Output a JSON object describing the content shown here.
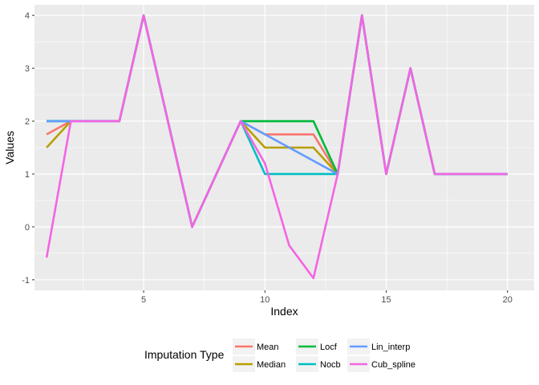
{
  "chart_data": {
    "type": "line",
    "title": "",
    "xlabel": "Index",
    "ylabel": "Values",
    "xlim": [
      0.5,
      21.1
    ],
    "ylim": [
      -1.2,
      4.2
    ],
    "x_ticks": [
      5,
      10,
      15,
      20
    ],
    "y_ticks": [
      -1,
      0,
      1,
      2,
      3,
      4
    ],
    "grid": true,
    "legend": {
      "title": "Imputation Type",
      "placement": "bottom"
    },
    "x": [
      1,
      2,
      3,
      4,
      5,
      6,
      7,
      8,
      9,
      10,
      11,
      12,
      13,
      14,
      15,
      16,
      17,
      18,
      19,
      20
    ],
    "series": [
      {
        "name": "Mean",
        "color": "#F8766D",
        "values": [
          1.75,
          2,
          2,
          2,
          4,
          2,
          0,
          1,
          2,
          1.75,
          1.75,
          1.75,
          1,
          4,
          1,
          3,
          1,
          1,
          1,
          1
        ]
      },
      {
        "name": "Median",
        "color": "#B79F00",
        "values": [
          1.5,
          2,
          2,
          2,
          4,
          2,
          0,
          1,
          2,
          1.5,
          1.5,
          1.5,
          1,
          4,
          1,
          3,
          1,
          1,
          1,
          1
        ]
      },
      {
        "name": "Locf",
        "color": "#00BA38",
        "values": [
          2,
          2,
          2,
          2,
          4,
          2,
          0,
          1,
          2,
          2,
          2,
          2,
          1,
          4,
          1,
          3,
          1,
          1,
          1,
          1
        ]
      },
      {
        "name": "Nocb",
        "color": "#00BFC4",
        "values": [
          2,
          2,
          2,
          2,
          4,
          2,
          0,
          1,
          2,
          1,
          1,
          1,
          1,
          4,
          1,
          3,
          1,
          1,
          1,
          1
        ]
      },
      {
        "name": "Lin_interp",
        "color": "#619CFF",
        "values": [
          2,
          2,
          2,
          2,
          4,
          2,
          0,
          1,
          2,
          1.75,
          1.5,
          1.25,
          1,
          4,
          1,
          3,
          1,
          1,
          1,
          1
        ]
      },
      {
        "name": "Cub_spline",
        "color": "#F564E3",
        "values": [
          -0.58,
          2,
          2,
          2,
          4,
          2,
          0,
          1,
          2,
          1.2,
          -0.35,
          -0.97,
          1,
          4,
          1,
          3,
          1,
          1,
          1,
          1
        ]
      }
    ]
  }
}
